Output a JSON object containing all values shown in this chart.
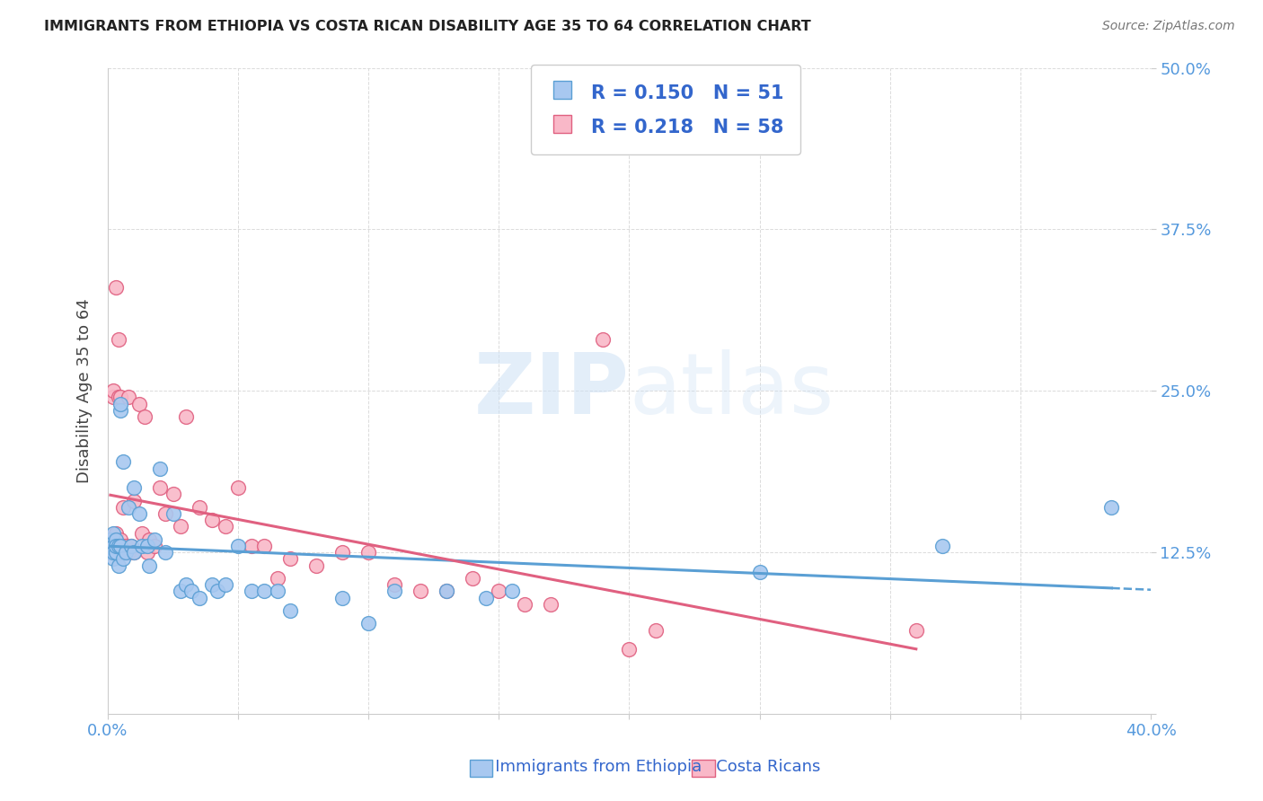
{
  "title": "IMMIGRANTS FROM ETHIOPIA VS COSTA RICAN DISABILITY AGE 35 TO 64 CORRELATION CHART",
  "source": "Source: ZipAtlas.com",
  "ylabel": "Disability Age 35 to 64",
  "xlim": [
    0.0,
    0.4
  ],
  "ylim": [
    0.0,
    0.5
  ],
  "xtick_pos": [
    0.0,
    0.05,
    0.1,
    0.15,
    0.2,
    0.25,
    0.3,
    0.35,
    0.4
  ],
  "xticklabels": [
    "0.0%",
    "",
    "",
    "",
    "",
    "",
    "",
    "",
    "40.0%"
  ],
  "ytick_pos": [
    0.0,
    0.125,
    0.25,
    0.375,
    0.5
  ],
  "yticklabels": [
    "",
    "12.5%",
    "25.0%",
    "37.5%",
    "50.0%"
  ],
  "R_ethiopia": 0.15,
  "N_ethiopia": 51,
  "R_costarica": 0.218,
  "N_costarica": 58,
  "color_ethiopia_fill": "#a8c8f0",
  "color_ethiopia_edge": "#5a9fd4",
  "color_costarica_fill": "#f9b8c8",
  "color_costarica_edge": "#e06080",
  "color_ethiopia_line": "#5a9fd4",
  "color_costarica_line": "#e06080",
  "watermark_color": "#cce0f5",
  "ethiopia_x": [
    0.001,
    0.001,
    0.001,
    0.002,
    0.002,
    0.002,
    0.002,
    0.003,
    0.003,
    0.003,
    0.004,
    0.004,
    0.005,
    0.005,
    0.005,
    0.006,
    0.006,
    0.007,
    0.008,
    0.009,
    0.01,
    0.01,
    0.012,
    0.013,
    0.015,
    0.016,
    0.018,
    0.02,
    0.022,
    0.025,
    0.028,
    0.03,
    0.032,
    0.035,
    0.04,
    0.042,
    0.045,
    0.05,
    0.055,
    0.06,
    0.065,
    0.07,
    0.09,
    0.1,
    0.11,
    0.13,
    0.145,
    0.155,
    0.25,
    0.32,
    0.385
  ],
  "ethiopia_y": [
    0.13,
    0.125,
    0.135,
    0.12,
    0.14,
    0.13,
    0.125,
    0.135,
    0.125,
    0.13,
    0.13,
    0.115,
    0.235,
    0.24,
    0.13,
    0.12,
    0.195,
    0.125,
    0.16,
    0.13,
    0.175,
    0.125,
    0.155,
    0.13,
    0.13,
    0.115,
    0.135,
    0.19,
    0.125,
    0.155,
    0.095,
    0.1,
    0.095,
    0.09,
    0.1,
    0.095,
    0.1,
    0.13,
    0.095,
    0.095,
    0.095,
    0.08,
    0.09,
    0.07,
    0.095,
    0.095,
    0.09,
    0.095,
    0.11,
    0.13,
    0.16
  ],
  "costarica_x": [
    0.001,
    0.001,
    0.001,
    0.002,
    0.002,
    0.002,
    0.002,
    0.003,
    0.003,
    0.003,
    0.004,
    0.004,
    0.004,
    0.005,
    0.005,
    0.005,
    0.006,
    0.006,
    0.007,
    0.007,
    0.008,
    0.008,
    0.009,
    0.01,
    0.01,
    0.012,
    0.013,
    0.014,
    0.015,
    0.016,
    0.018,
    0.02,
    0.022,
    0.025,
    0.028,
    0.03,
    0.035,
    0.04,
    0.045,
    0.05,
    0.055,
    0.06,
    0.065,
    0.07,
    0.08,
    0.09,
    0.1,
    0.11,
    0.12,
    0.13,
    0.14,
    0.15,
    0.16,
    0.17,
    0.19,
    0.2,
    0.21,
    0.31
  ],
  "costarica_y": [
    0.135,
    0.13,
    0.125,
    0.245,
    0.25,
    0.13,
    0.125,
    0.14,
    0.33,
    0.125,
    0.29,
    0.245,
    0.13,
    0.245,
    0.125,
    0.135,
    0.16,
    0.13,
    0.13,
    0.125,
    0.245,
    0.125,
    0.13,
    0.165,
    0.125,
    0.24,
    0.14,
    0.23,
    0.125,
    0.135,
    0.13,
    0.175,
    0.155,
    0.17,
    0.145,
    0.23,
    0.16,
    0.15,
    0.145,
    0.175,
    0.13,
    0.13,
    0.105,
    0.12,
    0.115,
    0.125,
    0.125,
    0.1,
    0.095,
    0.095,
    0.105,
    0.095,
    0.085,
    0.085,
    0.29,
    0.05,
    0.065,
    0.065
  ]
}
